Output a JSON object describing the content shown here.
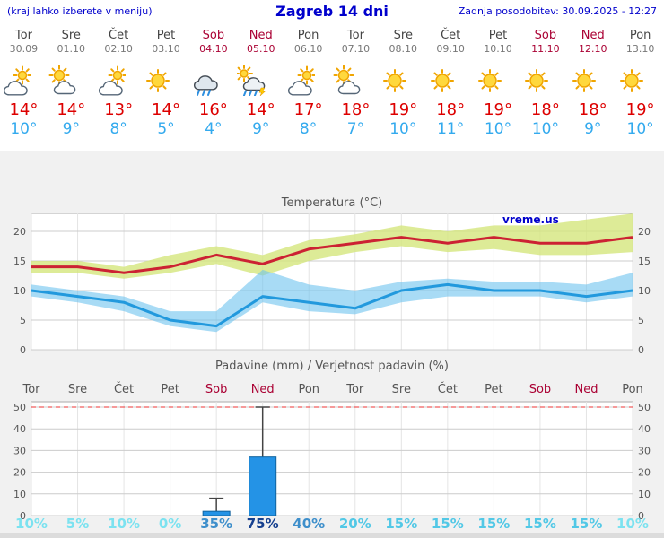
{
  "header": {
    "hint": "(kraj lahko izberete v meniju)",
    "title": "Zagreb 14 dni",
    "updated": "Zadnja posodobitev: 30.09.2025 - 12:27"
  },
  "watermark": "vreme.us",
  "colors": {
    "link_blue": "#0000cc",
    "weekend": "#aa0033",
    "weekday": "#444444",
    "high_temp": "#dd0000",
    "low_temp": "#33aaee",
    "max_line": "#cc2233",
    "max_band": "rgba(213,230,125,0.8)",
    "min_line": "#2299dd",
    "min_band": "rgba(110,195,238,0.6)",
    "bar_fill": "#2493e6",
    "bar_stroke": "#11639f",
    "grid": "#cccccc",
    "axis_text": "#555555",
    "dashed_max": "#ee3333"
  },
  "forecast": {
    "days": [
      {
        "name": "Tor",
        "date": "30.09",
        "weekend": false,
        "icon": "mostly-cloudy",
        "high": "14°",
        "low": "10°"
      },
      {
        "name": "Sre",
        "date": "01.10",
        "weekend": false,
        "icon": "partly-cloudy",
        "high": "14°",
        "low": "9°"
      },
      {
        "name": "Čet",
        "date": "02.10",
        "weekend": false,
        "icon": "mostly-cloudy",
        "high": "13°",
        "low": "8°"
      },
      {
        "name": "Pet",
        "date": "03.10",
        "weekend": false,
        "icon": "sunny",
        "high": "14°",
        "low": "5°"
      },
      {
        "name": "Sob",
        "date": "04.10",
        "weekend": true,
        "icon": "rain",
        "high": "16°",
        "low": "4°"
      },
      {
        "name": "Ned",
        "date": "05.10",
        "weekend": true,
        "icon": "storm",
        "high": "14°",
        "low": "9°"
      },
      {
        "name": "Pon",
        "date": "06.10",
        "weekend": false,
        "icon": "mostly-cloudy",
        "high": "17°",
        "low": "8°"
      },
      {
        "name": "Tor",
        "date": "07.10",
        "weekend": false,
        "icon": "partly-cloudy",
        "high": "18°",
        "low": "7°"
      },
      {
        "name": "Sre",
        "date": "08.10",
        "weekend": false,
        "icon": "sunny",
        "high": "19°",
        "low": "10°"
      },
      {
        "name": "Čet",
        "date": "09.10",
        "weekend": false,
        "icon": "sunny",
        "high": "18°",
        "low": "11°"
      },
      {
        "name": "Pet",
        "date": "10.10",
        "weekend": false,
        "icon": "sunny",
        "high": "19°",
        "low": "10°"
      },
      {
        "name": "Sob",
        "date": "11.10",
        "weekend": true,
        "icon": "sunny",
        "high": "18°",
        "low": "10°"
      },
      {
        "name": "Ned",
        "date": "12.10",
        "weekend": true,
        "icon": "sunny",
        "high": "18°",
        "low": "9°"
      },
      {
        "name": "Pon",
        "date": "13.10",
        "weekend": false,
        "icon": "sunny",
        "high": "19°",
        "low": "10°"
      }
    ]
  },
  "chart_data": [
    {
      "type": "area",
      "title": "Temperatura (°C)",
      "categories": [
        "Tor",
        "Sre",
        "Čet",
        "Pet",
        "Sob",
        "Ned",
        "Pon",
        "Tor",
        "Sre",
        "Čet",
        "Pet",
        "Sob",
        "Ned",
        "Pon"
      ],
      "ylim": [
        0,
        23
      ],
      "yticks": [
        0,
        5,
        10,
        15,
        20
      ],
      "grid": true,
      "series": [
        {
          "name": "max",
          "values": [
            14,
            14,
            13,
            14,
            16,
            14.5,
            17,
            18,
            19,
            18,
            19,
            18,
            18,
            19
          ]
        },
        {
          "name": "max_band_upper",
          "values": [
            15,
            15,
            14,
            16,
            17.5,
            16,
            18.5,
            19.5,
            21,
            20,
            21,
            21,
            22,
            23
          ]
        },
        {
          "name": "max_band_lower",
          "values": [
            13,
            13,
            12,
            13,
            14.5,
            12.5,
            15,
            16.5,
            17.5,
            16.5,
            17,
            16,
            16,
            16.5
          ]
        },
        {
          "name": "min",
          "values": [
            10,
            9,
            8,
            5,
            4,
            9,
            8,
            7,
            10,
            11,
            10,
            10,
            9,
            10
          ]
        },
        {
          "name": "min_band_upper",
          "values": [
            11,
            10,
            9,
            6.5,
            6.5,
            13.5,
            11,
            10,
            11.5,
            12,
            11.5,
            11.5,
            11,
            13
          ]
        },
        {
          "name": "min_band_lower",
          "values": [
            9,
            8,
            6.5,
            4,
            3,
            8,
            6.5,
            6,
            8,
            9,
            9,
            9,
            8,
            9
          ]
        }
      ]
    },
    {
      "type": "bar",
      "title": "Padavine (mm) / Verjetnost padavin (%)",
      "categories": [
        "Tor",
        "Sre",
        "Čet",
        "Pet",
        "Sob",
        "Ned",
        "Pon",
        "Tor",
        "Sre",
        "Čet",
        "Pet",
        "Sob",
        "Ned",
        "Pon"
      ],
      "weekend": [
        false,
        false,
        false,
        false,
        true,
        true,
        false,
        false,
        false,
        false,
        false,
        true,
        true,
        false
      ],
      "ylim": [
        0,
        52
      ],
      "yticks": [
        0,
        10,
        20,
        30,
        40,
        50
      ],
      "precip_mm": [
        0,
        0,
        0,
        0,
        2,
        27,
        0,
        0,
        0,
        0,
        0,
        0,
        0,
        0
      ],
      "precip_max_mm": [
        0,
        0,
        0,
        0,
        8,
        50,
        0,
        0,
        0,
        0,
        0,
        0,
        0,
        0
      ],
      "probability_pct": [
        10,
        5,
        10,
        0,
        35,
        75,
        40,
        20,
        15,
        15,
        15,
        15,
        15,
        10
      ],
      "probability_labels": [
        "10%",
        "5%",
        "10%",
        "0%",
        "35%",
        "75%",
        "40%",
        "20%",
        "15%",
        "15%",
        "15%",
        "15%",
        "15%",
        "10%"
      ]
    }
  ]
}
